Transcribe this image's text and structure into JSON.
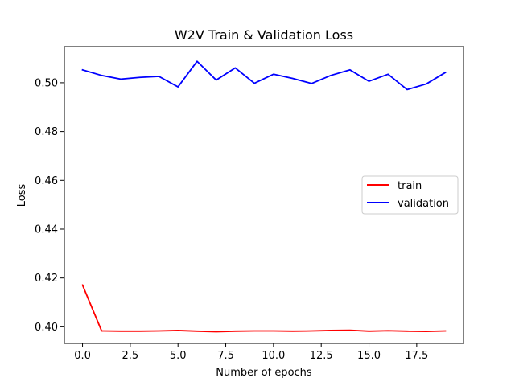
{
  "chart_data": {
    "type": "line",
    "title": "W2V Train & Validation Loss",
    "xlabel": "Number of epochs",
    "ylabel": "Loss",
    "xlim": [
      -0.95,
      19.95
    ],
    "ylim": [
      0.3932,
      0.5148
    ],
    "xticks": [
      0.0,
      2.5,
      5.0,
      7.5,
      10.0,
      12.5,
      15.0,
      17.5
    ],
    "xtick_labels": [
      "0.0",
      "2.5",
      "5.0",
      "7.5",
      "10.0",
      "12.5",
      "15.0",
      "17.5"
    ],
    "yticks": [
      0.4,
      0.42,
      0.44,
      0.46,
      0.48,
      0.5
    ],
    "ytick_labels": [
      "0.40",
      "0.42",
      "0.44",
      "0.46",
      "0.48",
      "0.50"
    ],
    "grid": false,
    "legend_position": "center right",
    "x": [
      0,
      1,
      2,
      3,
      4,
      5,
      6,
      7,
      8,
      9,
      10,
      11,
      12,
      13,
      14,
      15,
      16,
      17,
      18,
      19
    ],
    "series": [
      {
        "name": "train",
        "color": "#ff0000",
        "values": [
          0.4171,
          0.3983,
          0.3982,
          0.3982,
          0.3983,
          0.3985,
          0.3982,
          0.398,
          0.3982,
          0.3983,
          0.3983,
          0.3982,
          0.3983,
          0.3985,
          0.3986,
          0.3982,
          0.3984,
          0.3982,
          0.3981,
          0.3983
        ]
      },
      {
        "name": "validation",
        "color": "#0000ff",
        "values": [
          0.5053,
          0.503,
          0.5015,
          0.5022,
          0.5026,
          0.4983,
          0.5088,
          0.5011,
          0.5061,
          0.4998,
          0.5035,
          0.5018,
          0.4997,
          0.503,
          0.5053,
          0.5006,
          0.5035,
          0.4972,
          0.4995,
          0.5042
        ]
      }
    ]
  }
}
